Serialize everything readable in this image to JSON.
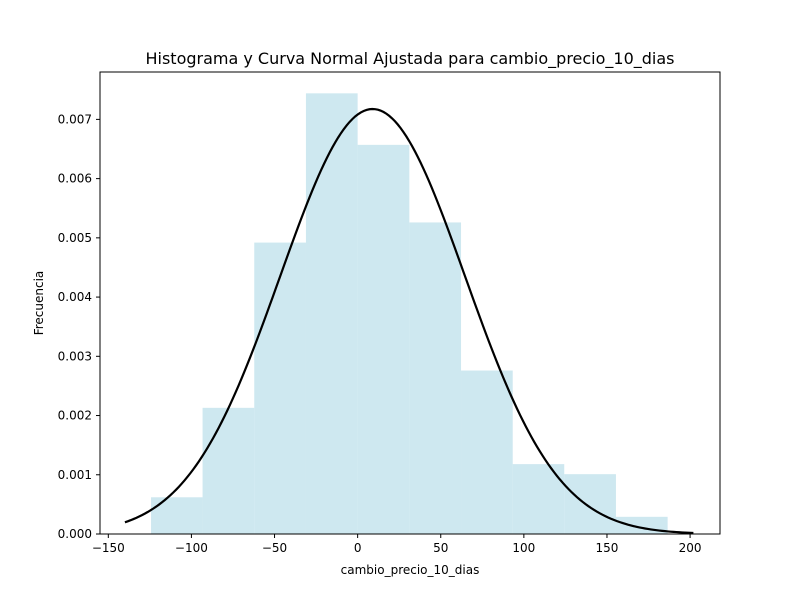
{
  "chart_data": {
    "type": "bar",
    "title": "Histograma y Curva Normal Ajustada para cambio_precio_10_dias",
    "xlabel": "cambio_precio_10_dias",
    "ylabel": "Frecuencia",
    "xlim": [
      -155,
      218
    ],
    "ylim": [
      0,
      0.0078
    ],
    "x_ticks": [
      -150,
      -100,
      -50,
      0,
      50,
      100,
      150,
      200
    ],
    "x_tick_labels": [
      "−150",
      "−100",
      "−50",
      "0",
      "50",
      "100",
      "150",
      "200"
    ],
    "y_ticks": [
      0,
      0.001,
      0.002,
      0.003,
      0.004,
      0.005,
      0.006,
      0.007
    ],
    "y_tick_labels": [
      "0.000",
      "0.001",
      "0.002",
      "0.003",
      "0.004",
      "0.005",
      "0.006",
      "0.007"
    ],
    "histogram": {
      "bin_edges": [
        -124.3,
        -93.3,
        -62.2,
        -31.1,
        0.0,
        31.1,
        62.2,
        93.3,
        124.3,
        155.4,
        186.5
      ],
      "values": [
        0.00062,
        0.00213,
        0.00492,
        0.00744,
        0.00657,
        0.00526,
        0.00276,
        0.00118,
        0.00101,
        0.00029
      ],
      "color": "#add8e6"
    },
    "normal_curve": {
      "mean": 9,
      "std": 55.6,
      "x_range": [
        -140,
        202
      ],
      "color": "#000000"
    },
    "grid": false,
    "legend": "none"
  }
}
